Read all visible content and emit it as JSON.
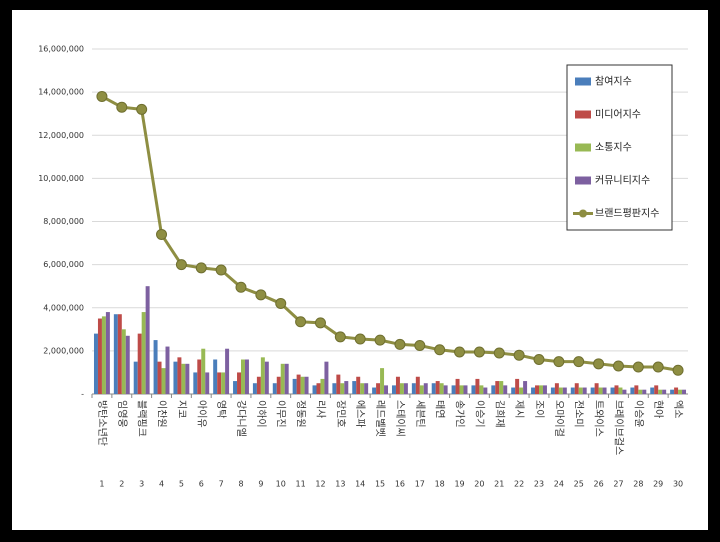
{
  "chart_data": {
    "type": "bar",
    "categories": [
      "방탄소년단",
      "임영웅",
      "블랙핑크",
      "이찬원",
      "지코",
      "아이유",
      "영탁",
      "강다니엘",
      "이하이",
      "이무진",
      "정동원",
      "리사",
      "장민호",
      "에스파",
      "레드벨벳",
      "스테이씨",
      "세븐틴",
      "태연",
      "송가인",
      "이승기",
      "김희재",
      "제시",
      "조이",
      "오마이걸",
      "전소미",
      "트와이스",
      "브레이브걸스",
      "이승윤",
      "현아",
      "엑소"
    ],
    "ranks": [
      1,
      2,
      3,
      4,
      5,
      6,
      7,
      8,
      9,
      10,
      11,
      12,
      13,
      14,
      15,
      16,
      17,
      18,
      19,
      20,
      21,
      22,
      23,
      24,
      25,
      26,
      27,
      28,
      29,
      30
    ],
    "series": [
      {
        "name": "참여지수",
        "color": "#4a7ebb",
        "values": [
          2800000,
          3700000,
          1500000,
          2500000,
          1500000,
          1000000,
          1600000,
          600000,
          500000,
          500000,
          700000,
          400000,
          500000,
          600000,
          300000,
          400000,
          500000,
          500000,
          400000,
          400000,
          400000,
          300000,
          300000,
          300000,
          300000,
          300000,
          300000,
          300000,
          300000,
          200000
        ]
      },
      {
        "name": "미디어지수",
        "color": "#be4b48",
        "values": [
          3500000,
          3700000,
          2800000,
          1500000,
          1700000,
          1600000,
          1000000,
          1000000,
          800000,
          800000,
          900000,
          500000,
          900000,
          800000,
          500000,
          800000,
          800000,
          600000,
          700000,
          700000,
          600000,
          700000,
          400000,
          500000,
          500000,
          500000,
          400000,
          400000,
          400000,
          300000
        ]
      },
      {
        "name": "소통지수",
        "color": "#98b954",
        "values": [
          3600000,
          3000000,
          3800000,
          1200000,
          1400000,
          2100000,
          1000000,
          1600000,
          1700000,
          1400000,
          800000,
          700000,
          500000,
          500000,
          1200000,
          500000,
          400000,
          500000,
          400000,
          400000,
          600000,
          300000,
          400000,
          300000,
          300000,
          300000,
          300000,
          200000,
          200000,
          200000
        ]
      },
      {
        "name": "커뮤니티지수",
        "color": "#7d60a0",
        "values": [
          3800000,
          2700000,
          5000000,
          2200000,
          1400000,
          1000000,
          2100000,
          1600000,
          1500000,
          1400000,
          800000,
          1500000,
          600000,
          500000,
          400000,
          500000,
          500000,
          400000,
          400000,
          300000,
          400000,
          600000,
          400000,
          300000,
          300000,
          300000,
          200000,
          200000,
          200000,
          200000
        ]
      },
      {
        "name": "브랜드평판지수",
        "type": "line",
        "color": "#8e8e42",
        "values": [
          13800000,
          13300000,
          13200000,
          7400000,
          6000000,
          5850000,
          5750000,
          4950000,
          4600000,
          4200000,
          3350000,
          3300000,
          2650000,
          2550000,
          2500000,
          2300000,
          2250000,
          2050000,
          1950000,
          1950000,
          1900000,
          1800000,
          1600000,
          1500000,
          1500000,
          1400000,
          1300000,
          1250000,
          1250000,
          1100000
        ]
      }
    ],
    "ylim": [
      0,
      16000000
    ],
    "yticks": [
      {
        "value": 0,
        "label": "-"
      },
      {
        "value": 2000000,
        "label": "2,000,000"
      },
      {
        "value": 4000000,
        "label": "4,000,000"
      },
      {
        "value": 6000000,
        "label": "6,000,000"
      },
      {
        "value": 8000000,
        "label": "8,000,000"
      },
      {
        "value": 10000000,
        "label": "10,000,000"
      },
      {
        "value": 12000000,
        "label": "12,000,000"
      },
      {
        "value": 14000000,
        "label": "14,000,000"
      },
      {
        "value": 16000000,
        "label": "16,000,000"
      }
    ],
    "grid": true
  }
}
